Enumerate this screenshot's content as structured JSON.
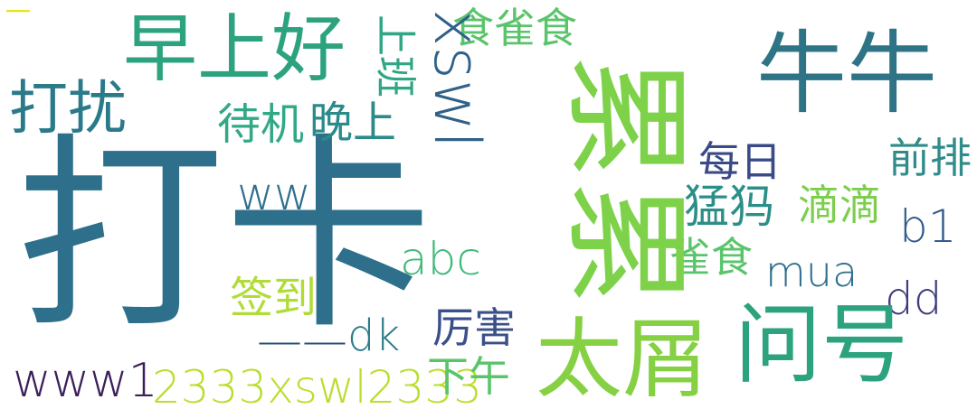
{
  "words": [
    {
      "text": "打卡",
      "color": "#2e6f8c"
    },
    {
      "text": "早上好",
      "color": "#2ca37e"
    },
    {
      "text": "打扰",
      "color": "#2b7a8a"
    },
    {
      "text": "牛牛",
      "color": "#2e7386"
    },
    {
      "text": "食雀食",
      "color": "#5ac46b"
    },
    {
      "text": "待机",
      "color": "#31a886"
    },
    {
      "text": "晚上",
      "color": "#2b8a8a"
    },
    {
      "text": "每日",
      "color": "#3a4a86"
    },
    {
      "text": "前排",
      "color": "#2f8c8a"
    },
    {
      "text": "ww",
      "color": "#2e6f8c"
    },
    {
      "text": "猛犸",
      "color": "#2c8f87"
    },
    {
      "text": "滴滴",
      "color": "#7ccf4e"
    },
    {
      "text": "b1",
      "color": "#315c8c"
    },
    {
      "text": "雀食",
      "color": "#5ac46b"
    },
    {
      "text": "abc",
      "color": "#40b97a"
    },
    {
      "text": "mua",
      "color": "#2e6f8c"
    },
    {
      "text": "签到",
      "color": "#b0dc38"
    },
    {
      "text": "dd",
      "color": "#3d3b7c"
    },
    {
      "text": "dk",
      "color": "#2b7c8a"
    },
    {
      "text": "厉害",
      "color": "#3b5088"
    },
    {
      "text": "太屑",
      "color": "#86d043"
    },
    {
      "text": "问号",
      "color": "#2ca37e"
    },
    {
      "text": "www1",
      "color": "#3b1f5a"
    },
    {
      "text": "2333xswl2333",
      "color": "#b9de2f"
    },
    {
      "text": "下午",
      "color": "#5ac46b"
    },
    {
      "text": "——",
      "color": "#2f4d7a"
    },
    {
      "text": "一",
      "color": "#e6e221"
    },
    {
      "text": "上班",
      "color": "#2fa684"
    },
    {
      "text": "xswl",
      "color": "#2f6189"
    },
    {
      "text": "累累",
      "color": "#7ed24a"
    }
  ]
}
